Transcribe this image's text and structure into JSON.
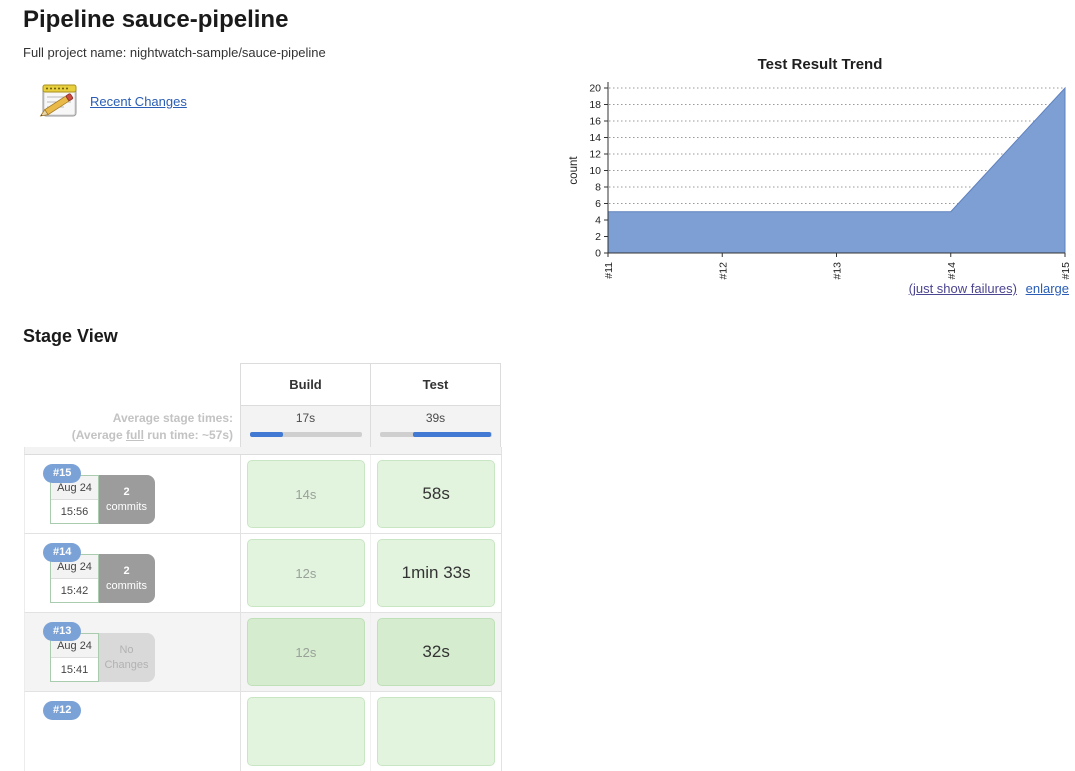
{
  "page": {
    "title": "Pipeline sauce-pipeline",
    "full_project_name": "Full project name: nightwatch-sample/sauce-pipeline",
    "recent_changes_label": "Recent Changes"
  },
  "chart_links": {
    "just_show_failures": "(just show failures)",
    "enlarge": "enlarge"
  },
  "chart_data": {
    "type": "area",
    "title": "Test Result Trend",
    "xlabel": "",
    "ylabel": "count",
    "categories": [
      "#11",
      "#12",
      "#13",
      "#14",
      "#15"
    ],
    "values": [
      5,
      5,
      5,
      5,
      20
    ],
    "ylim": [
      0,
      20
    ],
    "ytick_step": 2,
    "grid": true,
    "legend": "none",
    "fill_color": "#7E9FD4",
    "line_color": "#5E81BE"
  },
  "stage_view": {
    "heading": "Stage View",
    "columns": [
      "Build",
      "Test"
    ],
    "average": {
      "label_line1": "Average stage times:",
      "label_line2_prefix": "(Average ",
      "label_line2_underlined": "full",
      "label_line2_suffix": " run time: ~57s)",
      "durations": [
        "17s",
        "39s"
      ],
      "bars": [
        {
          "offset": 0,
          "width": 30
        },
        {
          "offset": 30,
          "width": 70
        }
      ]
    },
    "rows": [
      {
        "id": "#15",
        "date": "Aug 24",
        "time": "15:56",
        "changes": "2",
        "changes_label": "commits",
        "durations": [
          "14s",
          "58s"
        ]
      },
      {
        "id": "#14",
        "date": "Aug 24",
        "time": "15:42",
        "changes": "2",
        "changes_label": "commits",
        "durations": [
          "12s",
          "1min 33s"
        ]
      },
      {
        "id": "#13",
        "date": "Aug 24",
        "time": "15:41",
        "changes": "No",
        "changes_label": "Changes",
        "durations": [
          "12s",
          "32s"
        ]
      },
      {
        "id": "#12"
      }
    ]
  }
}
